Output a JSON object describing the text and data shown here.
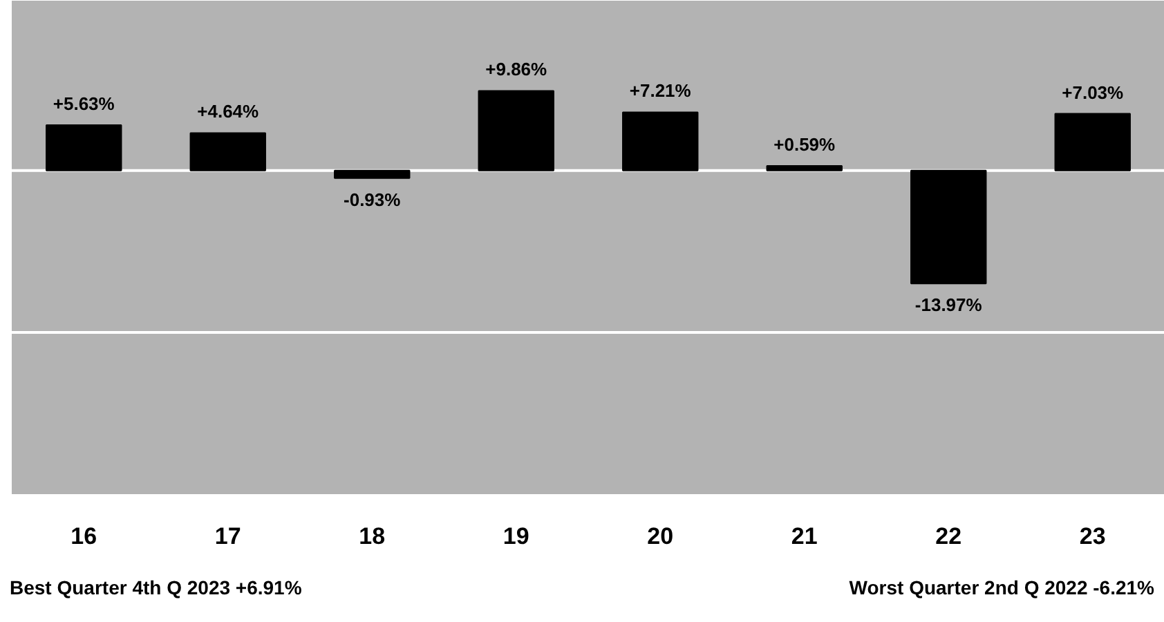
{
  "chart_data": {
    "type": "bar",
    "categories": [
      "16",
      "17",
      "18",
      "19",
      "20",
      "21",
      "22",
      "23"
    ],
    "values": [
      5.63,
      4.64,
      -0.93,
      9.86,
      7.21,
      0.59,
      -13.97,
      7.03
    ],
    "value_labels": [
      "+5.63%",
      "+4.64%",
      "-0.93%",
      "+9.86%",
      "+7.21%",
      "+0.59%",
      "-13.97%",
      "+7.03%"
    ],
    "color": "#000000",
    "ylim": [
      -40,
      21
    ],
    "tick_labels": "x",
    "ref_lines": [
      {
        "axis": "y",
        "value": 0,
        "color": "#ffffff"
      },
      {
        "axis": "y",
        "value": -20,
        "color": "#ffffff"
      }
    ],
    "annotations": [
      "Best Quarter 4th Q 2023 +6.91%",
      "Worst Quarter 2nd Q 2022 -6.21%"
    ]
  }
}
